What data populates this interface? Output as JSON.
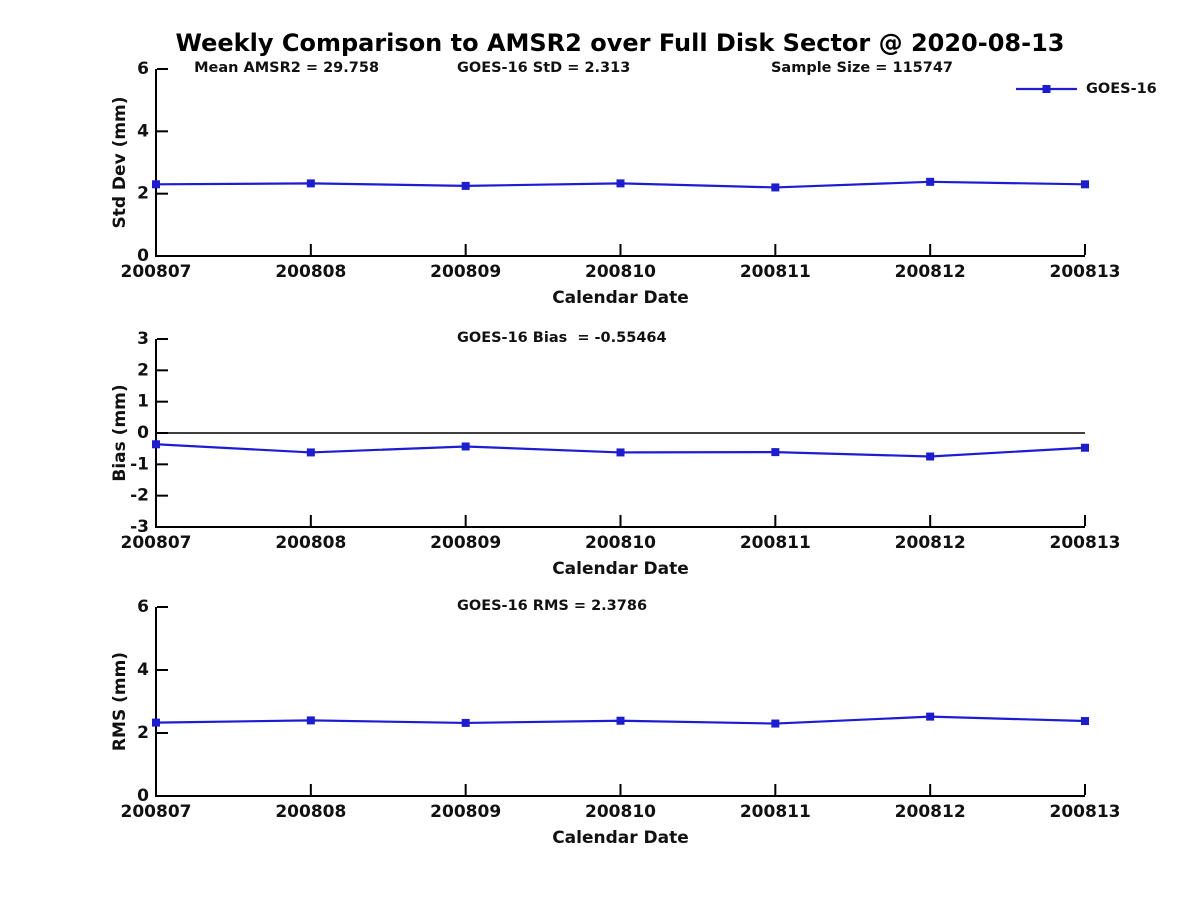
{
  "figure": {
    "title": "Weekly Comparison to AMSR2 over Full Disk Sector @ 2020-08-13",
    "background_color": "#ffffff",
    "accent_color": "#1C1CD2",
    "axis_color": "#000000",
    "text_color": "#111111"
  },
  "legend": {
    "label": "GOES-16",
    "marker": "square-icon",
    "position": "top-right"
  },
  "chart_data": [
    {
      "type": "line",
      "panel": "std-dev",
      "annotations": [
        "Mean AMSR2 = 29.758",
        "GOES-16 StD = 2.313",
        "Sample Size = 115747"
      ],
      "categories": [
        "200807",
        "200808",
        "200809",
        "200810",
        "200811",
        "200812",
        "200813"
      ],
      "series": [
        {
          "name": "GOES-16",
          "values": [
            2.3,
            2.33,
            2.25,
            2.33,
            2.2,
            2.38,
            2.3
          ]
        }
      ],
      "xlabel": "Calendar Date",
      "ylabel": "Std Dev (mm)",
      "ylim": [
        0,
        6
      ],
      "yticks": [
        0,
        2,
        4,
        6
      ],
      "grid": false,
      "zero_line": false,
      "show_legend": true,
      "legend_position": "top-right"
    },
    {
      "type": "line",
      "panel": "bias",
      "annotations": [
        "GOES-16 Bias  = -0.55464"
      ],
      "categories": [
        "200807",
        "200808",
        "200809",
        "200810",
        "200811",
        "200812",
        "200813"
      ],
      "series": [
        {
          "name": "GOES-16",
          "values": [
            -0.36,
            -0.62,
            -0.43,
            -0.62,
            -0.61,
            -0.75,
            -0.47
          ]
        }
      ],
      "xlabel": "Calendar Date",
      "ylabel": "Bias (mm)",
      "ylim": [
        -3,
        3
      ],
      "yticks": [
        -3,
        -2,
        -1,
        0,
        1,
        2,
        3
      ],
      "grid": false,
      "zero_line": true,
      "show_legend": false
    },
    {
      "type": "line",
      "panel": "rms",
      "annotations": [
        "GOES-16 RMS = 2.3786"
      ],
      "categories": [
        "200807",
        "200808",
        "200809",
        "200810",
        "200811",
        "200812",
        "200813"
      ],
      "series": [
        {
          "name": "GOES-16",
          "values": [
            2.33,
            2.4,
            2.32,
            2.39,
            2.3,
            2.52,
            2.38
          ]
        }
      ],
      "xlabel": "Calendar Date",
      "ylabel": "RMS (mm)",
      "ylim": [
        0,
        6
      ],
      "yticks": [
        0,
        2,
        4,
        6
      ],
      "grid": false,
      "zero_line": false,
      "show_legend": false
    }
  ]
}
